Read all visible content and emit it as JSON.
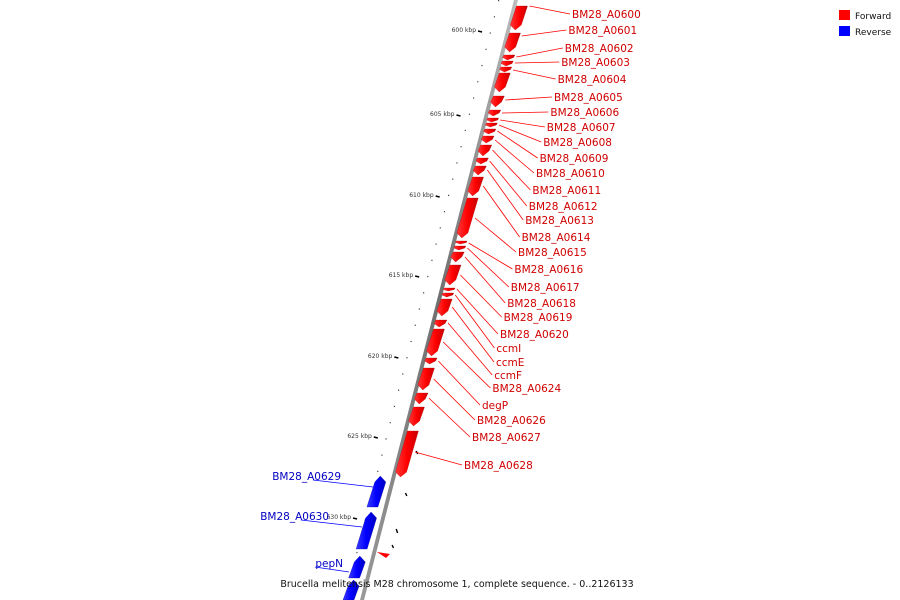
{
  "caption": "Brucella melitensis M28 chromosome 1, complete sequence. - 0..2126133",
  "legend": [
    {
      "label": "Forward",
      "color": "#ff0000"
    },
    {
      "label": "Reverse",
      "color": "#0000ff"
    }
  ],
  "ticks": [
    "600 kbp",
    "605 kbp",
    "610 kbp",
    "615 kbp",
    "620 kbp",
    "625 kbp",
    "630 kbp"
  ],
  "forward_genes": [
    "BM28_A0600",
    "BM28_A0601",
    "BM28_A0602",
    "BM28_A0603",
    "BM28_A0604",
    "BM28_A0605",
    "BM28_A0606",
    "BM28_A0607",
    "BM28_A0608",
    "BM28_A0609",
    "BM28_A0610",
    "BM28_A0611",
    "BM28_A0612",
    "BM28_A0613",
    "BM28_A0614",
    "BM28_A0615",
    "BM28_A0616",
    "BM28_A0617",
    "BM28_A0618",
    "BM28_A0619",
    "BM28_A0620",
    "ccmI",
    "ccmE",
    "ccmF",
    "BM28_A0624",
    "degP",
    "BM28_A0626",
    "BM28_A0627",
    "BM28_A0628"
  ],
  "reverse_genes": [
    "BM28_A0629",
    "BM28_A0630",
    "pepN"
  ]
}
